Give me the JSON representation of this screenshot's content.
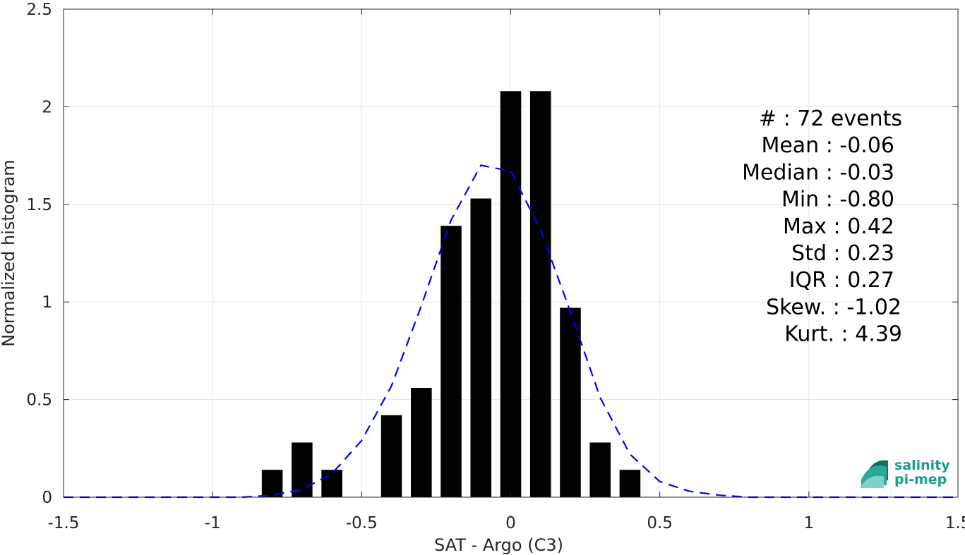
{
  "chart_data": {
    "type": "bar",
    "xlabel": "SAT - Argo (C3)",
    "ylabel": "Normalized histogram",
    "xlim": [
      -1.5,
      1.5
    ],
    "ylim": [
      0,
      2.5
    ],
    "xticks": [
      "-1.5",
      "-1",
      "-0.5",
      "0",
      "0.5",
      "1",
      "1.5"
    ],
    "yticks": [
      "0",
      "0.5",
      "1",
      "1.5",
      "2",
      "2.5"
    ],
    "grid": true,
    "bars": {
      "color": "#000000",
      "x": [
        -0.8,
        -0.7,
        -0.6,
        -0.4,
        -0.3,
        -0.2,
        -0.1,
        0.0,
        0.1,
        0.2,
        0.3,
        0.4
      ],
      "values": [
        0.14,
        0.28,
        0.14,
        0.42,
        0.56,
        1.39,
        1.53,
        2.08,
        2.08,
        0.97,
        0.28,
        0.14
      ]
    },
    "fit_curve": {
      "color": "#0000ff",
      "style": "dashed",
      "x": [
        -1.5,
        -1.4,
        -1.3,
        -1.2,
        -1.1,
        -1.0,
        -0.9,
        -0.8,
        -0.7,
        -0.6,
        -0.5,
        -0.4,
        -0.3,
        -0.2,
        -0.1,
        0.0,
        0.1,
        0.2,
        0.3,
        0.4,
        0.5,
        0.6,
        0.7,
        0.8,
        0.9,
        1.0,
        1.1,
        1.2,
        1.3,
        1.4,
        1.5
      ],
      "y": [
        0.0,
        0.0,
        0.0,
        0.0,
        0.0,
        0.0,
        0.0,
        0.01,
        0.04,
        0.12,
        0.29,
        0.57,
        0.98,
        1.42,
        1.7,
        1.67,
        1.37,
        0.95,
        0.51,
        0.22,
        0.08,
        0.03,
        0.01,
        0.0,
        0.0,
        0.0,
        0.0,
        0.0,
        0.0,
        0.0,
        0.0
      ]
    },
    "stats": [
      "#  : 72 events",
      "Mean : -0.06",
      "Median : -0.03",
      "Min : -0.80",
      "Max : 0.42",
      "Std : 0.23",
      "IQR : 0.27",
      "Skew. : -1.02",
      "Kurt. : 4.39"
    ]
  },
  "logo": {
    "line1": "salinity",
    "line2": "pi-mep",
    "color": "#1a9c8c"
  }
}
